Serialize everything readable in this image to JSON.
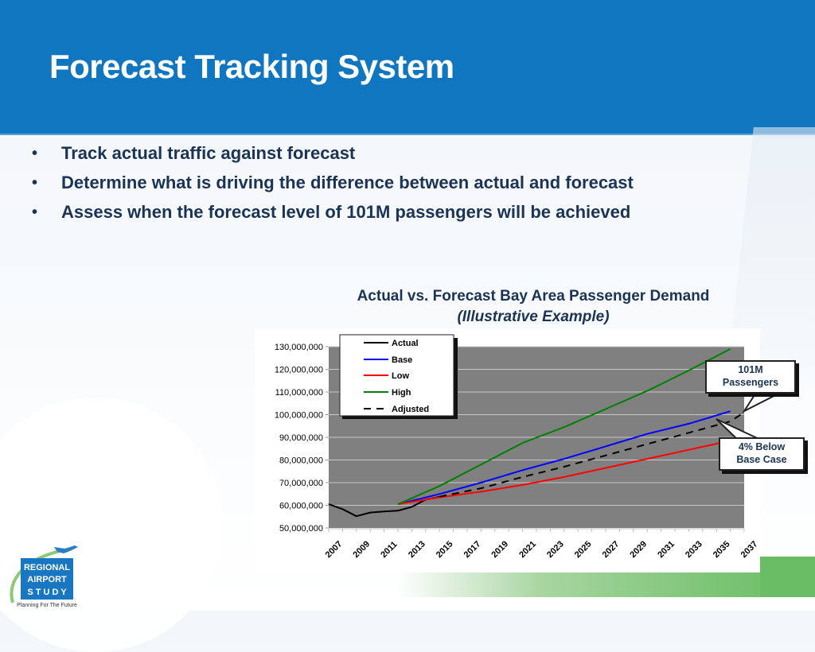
{
  "header": {
    "title": "Forecast Tracking System"
  },
  "bullets": [
    {
      "marker": "•",
      "text": "Track actual traffic against forecast"
    },
    {
      "marker": "•",
      "text": "Determine what is driving the difference between actual and forecast"
    },
    {
      "marker": "•",
      "text": "Assess when the forecast level of 101M passengers will be achieved"
    }
  ],
  "callouts": {
    "target": {
      "line1": "101M",
      "line2": "Passengers"
    },
    "gap": {
      "line1": "4% Below",
      "line2": "Base Case"
    }
  },
  "logo": {
    "line1": "REGIONAL",
    "line2": "AIRPORT",
    "line3": "S T U D Y",
    "tagline": "Planning For The Future"
  },
  "colors": {
    "header_blue": "#1176c0",
    "text_navy": "#1b3354",
    "plot_bg": "#808080",
    "actual": "#000000",
    "base": "#0000ff",
    "low": "#ff0000",
    "high": "#008000",
    "adjusted": "#000000"
  },
  "chart_data": {
    "type": "line",
    "title": "Actual vs. Forecast Bay Area Passenger Demand",
    "subtitle": "(Illustrative Example)",
    "xlabel": "",
    "ylabel": "",
    "xlim": [
      2007,
      2037
    ],
    "ylim": [
      50000000,
      130000000
    ],
    "grid": true,
    "legend_position": "top-left",
    "y_ticks": [
      "130,000,000",
      "120,000,000",
      "110,000,000",
      "100,000,000",
      "90,000,000",
      "80,000,000",
      "70,000,000",
      "60,000,000",
      "50,000,000"
    ],
    "y_tick_values": [
      130000000,
      120000000,
      110000000,
      100000000,
      90000000,
      80000000,
      70000000,
      60000000,
      50000000
    ],
    "x_ticks": [
      "2007",
      "2009",
      "2011",
      "2013",
      "2015",
      "2017",
      "2019",
      "2021",
      "2023",
      "2025",
      "2027",
      "2029",
      "2031",
      "2033",
      "2035",
      "2037"
    ],
    "series": [
      {
        "name": "Actual",
        "color": "#000000",
        "dash": false,
        "x": [
          2007,
          2008,
          2009,
          2010,
          2011,
          2012,
          2013,
          2014,
          2015
        ],
        "values": [
          60500000,
          58300000,
          55200000,
          56800000,
          57300000,
          57600000,
          59300000,
          62500000,
          63800000
        ]
      },
      {
        "name": "Base",
        "color": "#0000ff",
        "dash": false,
        "x": [
          2012,
          2015,
          2018,
          2021,
          2024,
          2027,
          2030,
          2033,
          2036
        ],
        "values": [
          60500000,
          65000000,
          70000000,
          75500000,
          80500000,
          86000000,
          91500000,
          96000000,
          101500000
        ]
      },
      {
        "name": "Low",
        "color": "#ff0000",
        "dash": false,
        "x": [
          2012,
          2015,
          2018,
          2021,
          2024,
          2027,
          2030,
          2033,
          2036
        ],
        "values": [
          60500000,
          63500000,
          66000000,
          69000000,
          72500000,
          76500000,
          80500000,
          84500000,
          88500000
        ]
      },
      {
        "name": "High",
        "color": "#008000",
        "dash": false,
        "x": [
          2012,
          2015,
          2018,
          2021,
          2024,
          2027,
          2030,
          2033,
          2036
        ],
        "values": [
          60500000,
          68500000,
          78000000,
          87500000,
          94500000,
          102500000,
          110500000,
          119500000,
          129000000
        ]
      },
      {
        "name": "Adjusted",
        "color": "#000000",
        "dash": true,
        "x": [
          2015,
          2018,
          2021,
          2024,
          2027,
          2030,
          2033,
          2036,
          2037
        ],
        "values": [
          63800000,
          67500000,
          72500000,
          77000000,
          82000000,
          87000000,
          92000000,
          97000000,
          101000000
        ]
      }
    ]
  }
}
